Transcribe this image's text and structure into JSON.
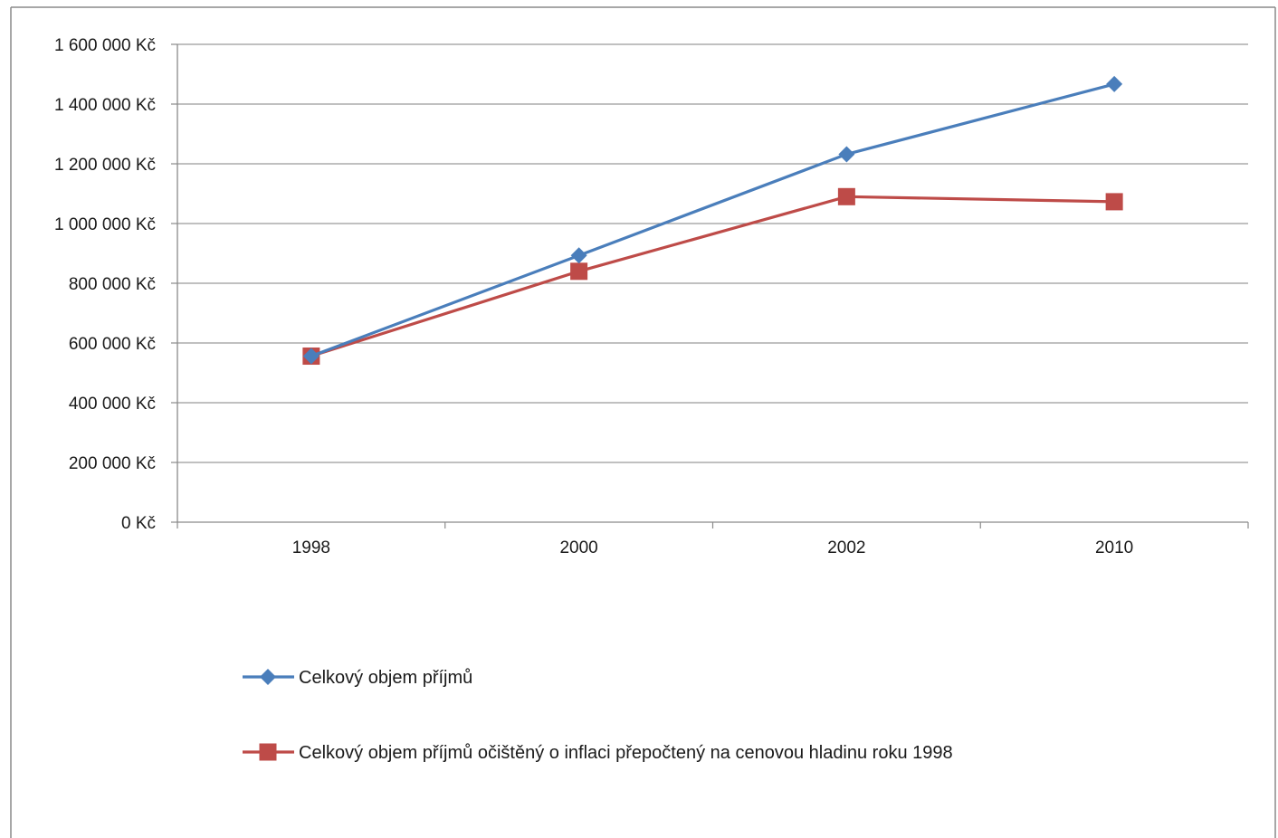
{
  "chart_data": {
    "type": "line",
    "title": "",
    "xlabel": "",
    "ylabel": "",
    "categories": [
      "1998",
      "2000",
      "2002",
      "2010"
    ],
    "ylim": [
      0,
      1600000
    ],
    "ytick_values": [
      0,
      200000,
      400000,
      600000,
      800000,
      1000000,
      1200000,
      1400000,
      1600000
    ],
    "ytick_labels": [
      "0 Kč",
      "200 000 Kč",
      "400 000 Kč",
      "600 000 Kč",
      "800 000 Kč",
      "1 000 000 Kč",
      "1 200 000 Kč",
      "1 400 000 Kč",
      "1 600 000 Kč"
    ],
    "grid": true,
    "legend_position": "bottom",
    "series": [
      {
        "name": "Celkový objem příjmů",
        "values": [
          556000,
          893000,
          1232000,
          1467000
        ],
        "color": "#4a7ebb",
        "marker": "diamond"
      },
      {
        "name": "Celkový objem příjmů očištěný o inflaci přepočtený na cenovou hladinu roku 1998",
        "values": [
          556000,
          840000,
          1090000,
          1073000
        ],
        "color": "#be4b48",
        "marker": "square"
      }
    ]
  }
}
